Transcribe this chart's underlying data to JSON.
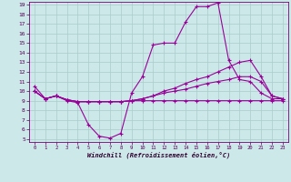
{
  "xlabel": "Windchill (Refroidissement éolien,°C)",
  "background_color": "#cce8e8",
  "grid_color": "#aacccc",
  "line_color": "#990099",
  "x_hours": [
    0,
    1,
    2,
    3,
    4,
    5,
    6,
    7,
    8,
    9,
    10,
    11,
    12,
    13,
    14,
    15,
    16,
    17,
    18,
    19,
    20,
    21,
    22,
    23
  ],
  "series1": [
    10.5,
    9.2,
    9.5,
    9.0,
    8.8,
    6.5,
    5.3,
    5.1,
    5.6,
    9.8,
    11.5,
    14.8,
    15.0,
    15.0,
    17.2,
    18.8,
    18.8,
    19.2,
    13.2,
    11.2,
    11.0,
    9.8,
    9.2,
    9.2
  ],
  "series2": [
    10.0,
    9.2,
    9.5,
    9.1,
    8.9,
    8.9,
    8.9,
    8.9,
    8.9,
    9.0,
    9.2,
    9.5,
    10.0,
    10.3,
    10.8,
    11.2,
    11.5,
    12.0,
    12.5,
    13.0,
    13.2,
    11.5,
    9.5,
    9.2
  ],
  "series3": [
    10.0,
    9.2,
    9.5,
    9.1,
    8.9,
    8.9,
    8.9,
    8.9,
    8.9,
    9.0,
    9.2,
    9.5,
    9.8,
    10.0,
    10.2,
    10.5,
    10.8,
    11.0,
    11.2,
    11.5,
    11.5,
    11.0,
    9.5,
    9.2
  ],
  "series4": [
    10.0,
    9.2,
    9.5,
    9.1,
    8.9,
    8.9,
    8.9,
    8.9,
    8.9,
    9.0,
    9.0,
    9.0,
    9.0,
    9.0,
    9.0,
    9.0,
    9.0,
    9.0,
    9.0,
    9.0,
    9.0,
    9.0,
    9.0,
    9.0
  ],
  "ylim": [
    5,
    19
  ],
  "yticks": [
    5,
    6,
    7,
    8,
    9,
    10,
    11,
    12,
    13,
    14,
    15,
    16,
    17,
    18,
    19
  ],
  "xticks": [
    0,
    1,
    2,
    3,
    4,
    5,
    6,
    7,
    8,
    9,
    10,
    11,
    12,
    13,
    14,
    15,
    16,
    17,
    18,
    19,
    20,
    21,
    22,
    23
  ]
}
